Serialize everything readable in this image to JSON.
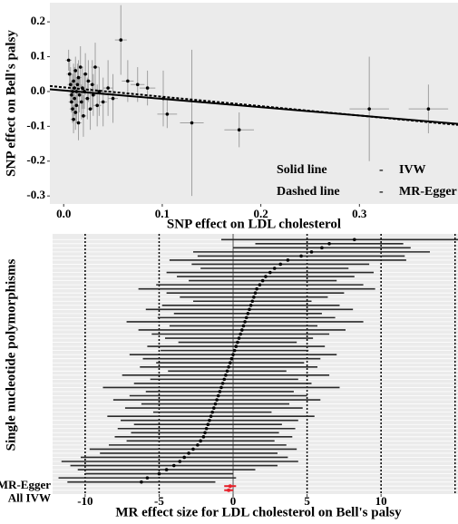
{
  "chart_data": [
    {
      "type": "scatter",
      "x_label": "SNP effect on LDL cholesterol",
      "y_label": "SNP effect on Bell's palsy",
      "xlim": [
        -0.014,
        0.4
      ],
      "ylim": [
        -0.323,
        0.255
      ],
      "xticks": [
        {
          "value": 0,
          "label": "0.0"
        },
        0.1,
        0.2,
        0.3
      ],
      "yticks": [
        -0.3,
        -0.2,
        -0.1,
        {
          "value": 0,
          "label": "0.0"
        },
        0.1,
        0.2
      ],
      "color": "#000000",
      "errorbar_color": "#a0a0a0",
      "background": "#ebebeb",
      "x": [
        0.005,
        0.006,
        0.007,
        0.008,
        0.008,
        0.009,
        0.009,
        0.01,
        0.01,
        0.011,
        0.011,
        0.012,
        0.012,
        0.013,
        0.013,
        0.014,
        0.015,
        0.015,
        0.016,
        0.017,
        0.018,
        0.019,
        0.02,
        0.021,
        0.022,
        0.024,
        0.025,
        0.027,
        0.029,
        0.03,
        0.032,
        0.034,
        0.036,
        0.04,
        0.045,
        0.05,
        0.058,
        0.065,
        0.075,
        0.085,
        0.101,
        0.105,
        0.13,
        0.178,
        0.31,
        0.37
      ],
      "values": [
        0.09,
        0.05,
        0.02,
        -0.01,
        -0.03,
        0,
        -0.05,
        0.03,
        -0.08,
        0.01,
        -0.02,
        0.06,
        -0.06,
        0,
        -0.04,
        0.02,
        -0.09,
        0.04,
        -0.01,
        0.07,
        -0.03,
        0.01,
        -0.07,
        0,
        0.05,
        -0.02,
        0.03,
        -0.05,
        0.02,
        -0.01,
        0.07,
        -0.04,
        0,
        -0.03,
        0.01,
        -0.02,
        0.148,
        0.03,
        0.02,
        0.01,
        -0.02,
        -0.065,
        -0.09,
        -0.11,
        -0.05,
        -0.05
      ],
      "xerr": [
        0.003,
        0.003,
        0.003,
        0.003,
        0.003,
        0.003,
        0.003,
        0.003,
        0.003,
        0.003,
        0.003,
        0.003,
        0.003,
        0.003,
        0.003,
        0.003,
        0.003,
        0.003,
        0.003,
        0.003,
        0.003,
        0.003,
        0.003,
        0.003,
        0.003,
        0.003,
        0.003,
        0.003,
        0.003,
        0.003,
        0.004,
        0.004,
        0.004,
        0.004,
        0.005,
        0.005,
        0.006,
        0.006,
        0.007,
        0.008,
        0.01,
        0.01,
        0.012,
        0.015,
        0.02,
        0.02
      ],
      "yerr": [
        0.03,
        0.04,
        0.05,
        0.04,
        0.03,
        0.05,
        0.04,
        0.05,
        0.04,
        0.06,
        0.05,
        0.04,
        0.05,
        0.04,
        0.05,
        0.06,
        0.05,
        0.05,
        0.05,
        0.06,
        0.05,
        0.06,
        0.06,
        0.05,
        0.06,
        0.06,
        0.06,
        0.06,
        0.07,
        0.06,
        0.07,
        0.06,
        0.07,
        0.07,
        0.08,
        0.07,
        0.1,
        0.06,
        0.05,
        0.05,
        0.08,
        0.04,
        0.21,
        0.05,
        0.15,
        0.07
      ],
      "lines": [
        {
          "name": "IVW",
          "intercept": 0.003,
          "slope": -0.24,
          "dashed": false
        },
        {
          "name": "MR-Egger",
          "intercept": 0.012,
          "slope": -0.27,
          "dashed": true
        }
      ],
      "legend": [
        {
          "line": "Solid line",
          "sep": "-",
          "method": "IVW"
        },
        {
          "line": "Dashed line",
          "sep": "-",
          "method": "MR-Egger"
        }
      ]
    },
    {
      "type": "forest",
      "x_label": "MR effect size for LDL cholesterol on Bell's palsy",
      "y_label": "Single nucleotide polymorphisms",
      "xlim": [
        -12.2,
        15.2
      ],
      "xticks": [
        -10,
        -5,
        0,
        5,
        10
      ],
      "vlines": [
        -10,
        -5,
        5,
        10,
        15
      ],
      "background": "#ebebeb",
      "color": "#000000",
      "categories": [
        null,
        null,
        null,
        null,
        null,
        null,
        null,
        null,
        null,
        null,
        null,
        null,
        null,
        null,
        null,
        null,
        null,
        null,
        null,
        null,
        null,
        null,
        null,
        null,
        null,
        null,
        null,
        null,
        null,
        null,
        null,
        null,
        null,
        null,
        null,
        null,
        null,
        null,
        null,
        null,
        null,
        null,
        null,
        null,
        null,
        null,
        null,
        null,
        null,
        null,
        null,
        null,
        null,
        null,
        null,
        null,
        null,
        null,
        null,
        null
      ],
      "values": [
        8.2,
        6.5,
        6,
        5.3,
        4.6,
        3.7,
        3.2,
        2.8,
        2.5,
        2.2,
        2,
        1.8,
        1.6,
        1.5,
        1.4,
        1.3,
        1.2,
        1.1,
        1,
        0.9,
        0.8,
        0.7,
        0.6,
        0.5,
        0.4,
        0.3,
        0.2,
        0.1,
        0,
        -0.1,
        -0.2,
        -0.3,
        -0.4,
        -0.5,
        -0.6,
        -0.7,
        -0.8,
        -0.9,
        -1,
        -1.1,
        -1.2,
        -1.3,
        -1.4,
        -1.5,
        -1.6,
        -1.7,
        -1.8,
        -1.9,
        -2,
        -2.2,
        -2.4,
        -2.7,
        -3,
        -3.3,
        -3.6,
        -4,
        -4.5,
        -5,
        -5.8,
        -6.2
      ],
      "errors": [
        9,
        5,
        6,
        8,
        7,
        8,
        6,
        5,
        7,
        6,
        5,
        7,
        8,
        6,
        5,
        4,
        6,
        7,
        5,
        6,
        8,
        5,
        7,
        6,
        5,
        4,
        6,
        5,
        7,
        6,
        5,
        6,
        4,
        7,
        5,
        6,
        8,
        5,
        6,
        7,
        5,
        6,
        4,
        7,
        6,
        5,
        6,
        5,
        6,
        5,
        6,
        7,
        6,
        7,
        8,
        7,
        6,
        5,
        6,
        5
      ],
      "summary": {
        "categories": [
          "All MR-Egger",
          "All IVW"
        ],
        "values": [
          -0.2,
          -0.3
        ],
        "errors": [
          0.4,
          0.3
        ],
        "color": "#e8202a"
      }
    }
  ]
}
